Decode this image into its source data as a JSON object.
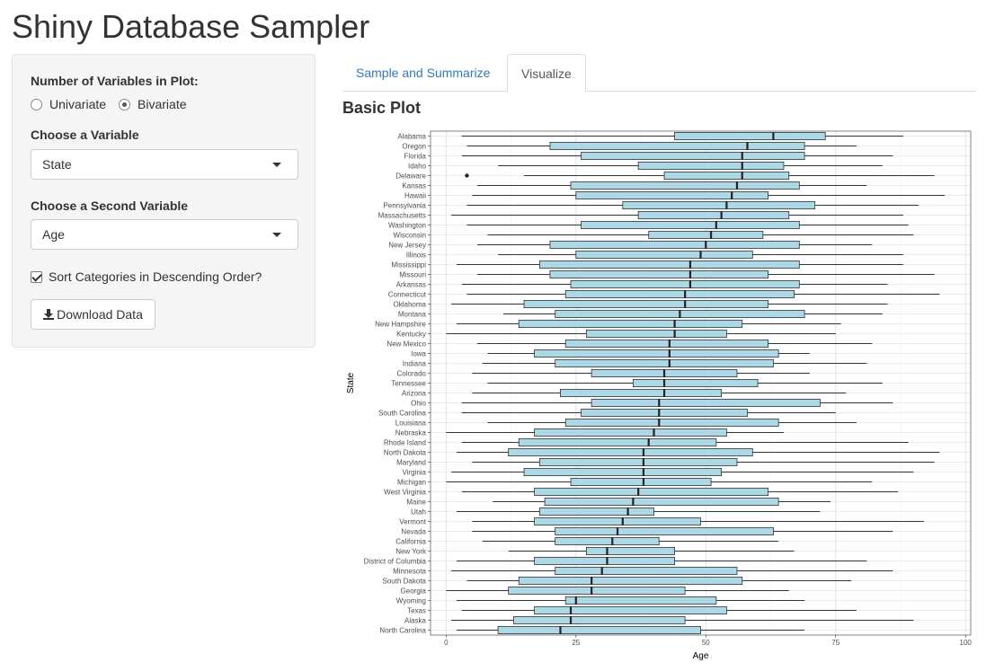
{
  "app": {
    "title": "Shiny Database Sampler"
  },
  "sidebar": {
    "num_vars_label": "Number of Variables in Plot:",
    "radio_options": [
      {
        "label": "Univariate",
        "checked": false
      },
      {
        "label": "Bivariate",
        "checked": true
      }
    ],
    "var1_label": "Choose a Variable",
    "var1_value": "State",
    "var2_label": "Choose a Second Variable",
    "var2_value": "Age",
    "sort_label": "Sort Categories in Descending Order?",
    "sort_checked": true,
    "download_label": "Download Data"
  },
  "tabs": [
    {
      "label": "Sample and Summarize",
      "active": false
    },
    {
      "label": "Visualize",
      "active": true
    }
  ],
  "plot": {
    "title": "Basic Plot"
  },
  "colors": {
    "box_fill": "#add8e6",
    "link": "#337ab7"
  },
  "chart_data": {
    "type": "boxplot",
    "orientation": "horizontal",
    "xlabel": "Age",
    "ylabel": "State",
    "xlim": [
      -3,
      101
    ],
    "xticks": [
      0,
      25,
      50,
      75,
      100
    ],
    "grid": true,
    "categories": [
      "Alabama",
      "Oregon",
      "Florida",
      "Idaho",
      "Delaware",
      "Kansas",
      "Hawaii",
      "Pennsylvania",
      "Massachusetts",
      "Washington",
      "Wisconsin",
      "New Jersey",
      "Illinois",
      "Mississippi",
      "Missouri",
      "Arkansas",
      "Connecticut",
      "Oklahoma",
      "Montana",
      "New Hampshire",
      "Kentucky",
      "New Mexico",
      "Iowa",
      "Indiana",
      "Colorado",
      "Tennessee",
      "Arizona",
      "Ohio",
      "South Carolina",
      "Louisiana",
      "Nebraska",
      "Rhode Island",
      "North Dakota",
      "Maryland",
      "Virginia",
      "Michigan",
      "West Virginia",
      "Maine",
      "Utah",
      "Vermont",
      "Nevada",
      "California",
      "New York",
      "District of Columbia",
      "Minnesota",
      "South Dakota",
      "Georgia",
      "Wyoming",
      "Texas",
      "Alaska",
      "North Carolina"
    ],
    "boxes": [
      {
        "min": 3,
        "q1": 44,
        "median": 63,
        "q3": 73,
        "max": 88
      },
      {
        "min": 4,
        "q1": 20,
        "median": 58,
        "q3": 69,
        "max": 79
      },
      {
        "min": 3,
        "q1": 26,
        "median": 57,
        "q3": 69,
        "max": 86
      },
      {
        "min": 10,
        "q1": 37,
        "median": 57,
        "q3": 65,
        "max": 84
      },
      {
        "min": 15,
        "q1": 42,
        "median": 57,
        "q3": 66,
        "max": 94,
        "outliers": [
          4
        ]
      },
      {
        "min": 6,
        "q1": 24,
        "median": 56,
        "q3": 68,
        "max": 81
      },
      {
        "min": 5,
        "q1": 25,
        "median": 55,
        "q3": 62,
        "max": 96
      },
      {
        "min": 4,
        "q1": 34,
        "median": 54,
        "q3": 71,
        "max": 91
      },
      {
        "min": 1,
        "q1": 37,
        "median": 53,
        "q3": 66,
        "max": 88
      },
      {
        "min": 4,
        "q1": 26,
        "median": 52,
        "q3": 68,
        "max": 89
      },
      {
        "min": 8,
        "q1": 39,
        "median": 51,
        "q3": 61,
        "max": 90
      },
      {
        "min": 6,
        "q1": 20,
        "median": 50,
        "q3": 68,
        "max": 82
      },
      {
        "min": 10,
        "q1": 25,
        "median": 49,
        "q3": 59,
        "max": 88
      },
      {
        "min": 2,
        "q1": 18,
        "median": 47,
        "q3": 68,
        "max": 88
      },
      {
        "min": 6,
        "q1": 20,
        "median": 47,
        "q3": 62,
        "max": 94
      },
      {
        "min": 3,
        "q1": 24,
        "median": 47,
        "q3": 68,
        "max": 85
      },
      {
        "min": 4,
        "q1": 23,
        "median": 46,
        "q3": 67,
        "max": 95
      },
      {
        "min": 1,
        "q1": 15,
        "median": 46,
        "q3": 62,
        "max": 85
      },
      {
        "min": 11,
        "q1": 21,
        "median": 45,
        "q3": 69,
        "max": 84
      },
      {
        "min": 2,
        "q1": 14,
        "median": 44,
        "q3": 57,
        "max": 76
      },
      {
        "min": 0,
        "q1": 27,
        "median": 44,
        "q3": 54,
        "max": 75
      },
      {
        "min": 6,
        "q1": 23,
        "median": 43,
        "q3": 62,
        "max": 82
      },
      {
        "min": 8,
        "q1": 17,
        "median": 43,
        "q3": 64,
        "max": 70
      },
      {
        "min": 7,
        "q1": 21,
        "median": 43,
        "q3": 63,
        "max": 81
      },
      {
        "min": 5,
        "q1": 28,
        "median": 42,
        "q3": 56,
        "max": 70
      },
      {
        "min": 8,
        "q1": 36,
        "median": 42,
        "q3": 60,
        "max": 84
      },
      {
        "min": 5,
        "q1": 22,
        "median": 42,
        "q3": 53,
        "max": 77
      },
      {
        "min": 3,
        "q1": 28,
        "median": 41,
        "q3": 72,
        "max": 86
      },
      {
        "min": 3,
        "q1": 26,
        "median": 41,
        "q3": 58,
        "max": 75
      },
      {
        "min": 8,
        "q1": 23,
        "median": 41,
        "q3": 64,
        "max": 79
      },
      {
        "min": 0,
        "q1": 17,
        "median": 40,
        "q3": 54,
        "max": 65
      },
      {
        "min": 3,
        "q1": 14,
        "median": 39,
        "q3": 52,
        "max": 89
      },
      {
        "min": 2,
        "q1": 12,
        "median": 38,
        "q3": 59,
        "max": 95
      },
      {
        "min": 5,
        "q1": 18,
        "median": 38,
        "q3": 56,
        "max": 94
      },
      {
        "min": 1,
        "q1": 15,
        "median": 38,
        "q3": 53,
        "max": 90
      },
      {
        "min": 0,
        "q1": 24,
        "median": 38,
        "q3": 51,
        "max": 82
      },
      {
        "min": 3,
        "q1": 17,
        "median": 37,
        "q3": 62,
        "max": 87
      },
      {
        "min": 9,
        "q1": 19,
        "median": 36,
        "q3": 64,
        "max": 74
      },
      {
        "min": 2,
        "q1": 18,
        "median": 35,
        "q3": 40,
        "max": 72
      },
      {
        "min": 5,
        "q1": 17,
        "median": 34,
        "q3": 49,
        "max": 92
      },
      {
        "min": 5,
        "q1": 21,
        "median": 33,
        "q3": 63,
        "max": 86
      },
      {
        "min": 7,
        "q1": 21,
        "median": 32,
        "q3": 41,
        "max": 64
      },
      {
        "min": 12,
        "q1": 27,
        "median": 31,
        "q3": 44,
        "max": 67
      },
      {
        "min": 2,
        "q1": 17,
        "median": 31,
        "q3": 44,
        "max": 81
      },
      {
        "min": 1,
        "q1": 21,
        "median": 30,
        "q3": 56,
        "max": 86
      },
      {
        "min": 4,
        "q1": 14,
        "median": 28,
        "q3": 57,
        "max": 78
      },
      {
        "min": 0,
        "q1": 12,
        "median": 28,
        "q3": 46,
        "max": 66
      },
      {
        "min": 2,
        "q1": 23,
        "median": 25,
        "q3": 52,
        "max": 69
      },
      {
        "min": 3,
        "q1": 17,
        "median": 24,
        "q3": 54,
        "max": 79
      },
      {
        "min": 1,
        "q1": 13,
        "median": 24,
        "q3": 46,
        "max": 90
      },
      {
        "min": 2,
        "q1": 10,
        "median": 22,
        "q3": 49,
        "max": 69
      }
    ]
  }
}
